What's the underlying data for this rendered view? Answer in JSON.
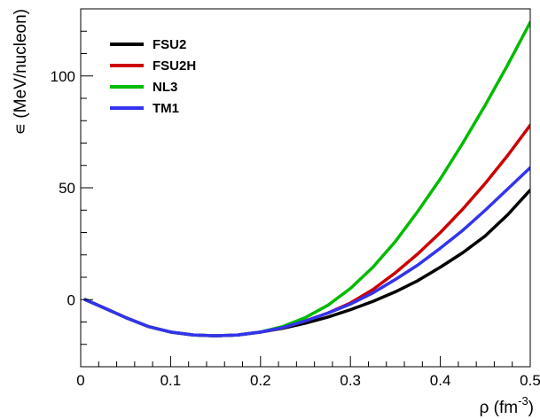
{
  "chart_data": {
    "type": "line",
    "title": "",
    "xlabel": "ρ (fm",
    "xlabel_sup": "-3",
    "xlabel_close": ")",
    "ylabel": "∊ (MeV/nucleon)",
    "xlim": [
      0,
      0.5
    ],
    "ylim": [
      -30,
      130
    ],
    "x_ticks": [
      0,
      0.1,
      0.2,
      0.3,
      0.4,
      0.5
    ],
    "x_tick_labels": [
      "0",
      "0.1",
      "0.2",
      "0.3",
      "0.4",
      "0.5"
    ],
    "y_ticks": [
      0,
      50,
      100
    ],
    "y_tick_labels": [
      "0",
      "50",
      "100"
    ],
    "grid": false,
    "legend_position": "top-left",
    "x": [
      0.005,
      0.025,
      0.05,
      0.075,
      0.1,
      0.125,
      0.15,
      0.175,
      0.2,
      0.225,
      0.25,
      0.275,
      0.3,
      0.325,
      0.35,
      0.375,
      0.4,
      0.425,
      0.45,
      0.475,
      0.5
    ],
    "series": [
      {
        "name": "FSU2",
        "color": "#000000",
        "values": [
          0,
          -3.5,
          -8,
          -12,
          -14.5,
          -15.8,
          -16.2,
          -15.8,
          -14.5,
          -12.8,
          -10.5,
          -7.8,
          -4.5,
          -0.8,
          3.5,
          8.5,
          14.5,
          21,
          28.5,
          38,
          49
        ]
      },
      {
        "name": "FSU2H",
        "color": "#cc0000",
        "values": [
          0,
          -3.5,
          -8,
          -12,
          -14.5,
          -15.8,
          -16.2,
          -15.8,
          -14.5,
          -12.5,
          -9.5,
          -6,
          -1.5,
          4.5,
          12,
          20.5,
          30,
          40.5,
          52,
          64.5,
          78
        ]
      },
      {
        "name": "NL3",
        "color": "#00bb00",
        "values": [
          0,
          -3.5,
          -8,
          -12,
          -14.5,
          -15.8,
          -16.2,
          -15.8,
          -14.5,
          -12,
          -8,
          -2.5,
          5,
          14.5,
          26,
          39.5,
          54,
          70,
          87,
          105,
          124
        ]
      },
      {
        "name": "TM1",
        "color": "#3333ee",
        "values": [
          0,
          -3.5,
          -8,
          -12,
          -14.5,
          -15.8,
          -16.2,
          -15.8,
          -14.5,
          -12.5,
          -9.5,
          -6,
          -2,
          3,
          9,
          15.5,
          23,
          31,
          40,
          49.5,
          59
        ]
      }
    ]
  }
}
